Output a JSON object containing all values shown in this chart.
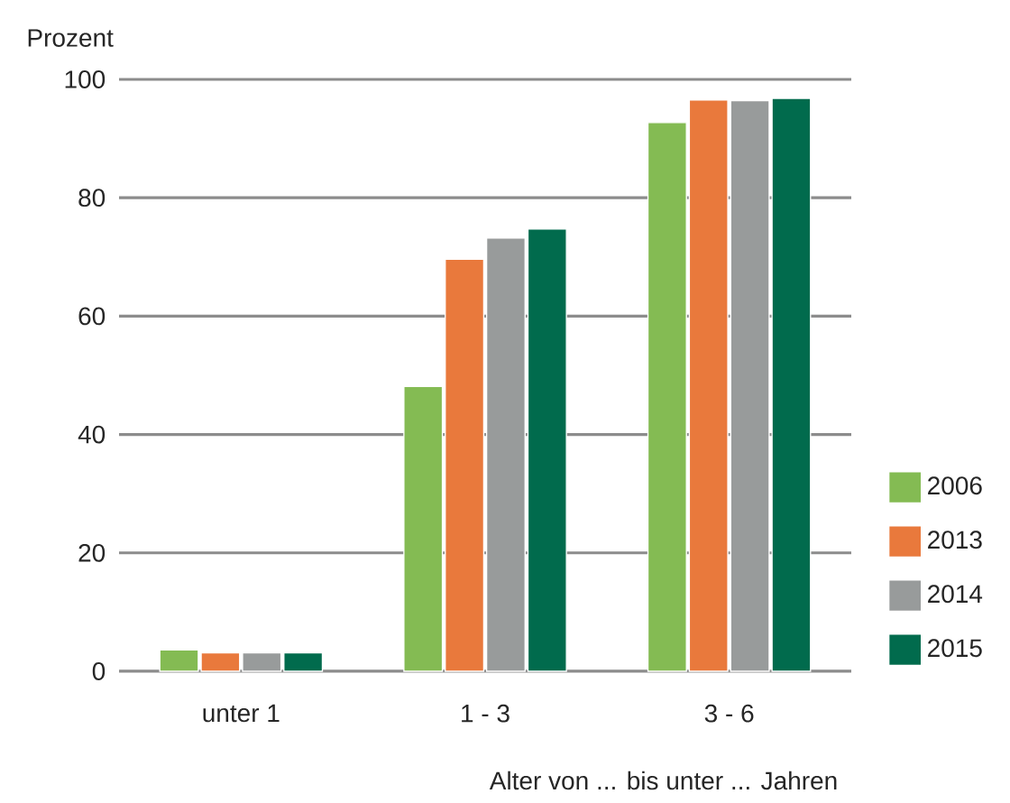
{
  "chart_data": {
    "type": "bar",
    "ylabel": "Prozent",
    "xlabel": "Alter von ... bis unter ... Jahren",
    "categories": [
      "unter 1",
      "1 - 3",
      "3 - 6"
    ],
    "series": [
      {
        "name": "2006",
        "color": "#84bb53",
        "values": [
          3.6,
          48.1,
          92.7
        ]
      },
      {
        "name": "2013",
        "color": "#e9793c",
        "values": [
          3.1,
          69.6,
          96.5
        ]
      },
      {
        "name": "2014",
        "color": "#989b9b",
        "values": [
          3.1,
          73.2,
          96.4
        ]
      },
      {
        "name": "2015",
        "color": "#016b4d",
        "values": [
          3.1,
          74.7,
          96.8
        ]
      }
    ],
    "ylim": [
      0,
      100
    ],
    "yticks": [
      0,
      20,
      40,
      60,
      80,
      100
    ],
    "grid": "y",
    "legend": "right"
  }
}
